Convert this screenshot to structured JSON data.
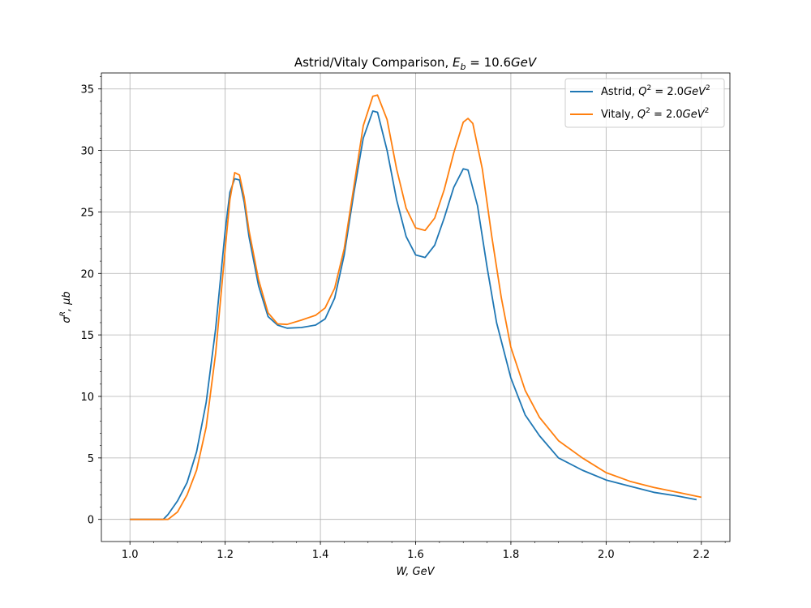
{
  "chart_data": {
    "type": "line",
    "title_main": "Astrid/Vitaly Comparison, ",
    "title_math_var": "E",
    "title_math_sub": "b",
    "title_math_value": " = 10.6",
    "title_math_unit": "GeV",
    "xlabel": "W, GeV",
    "ylabel_sym": "σ",
    "ylabel_sup": "R",
    "ylabel_rest": ", μb",
    "xlim": [
      0.94,
      2.26
    ],
    "ylim": [
      -1.8,
      36.3
    ],
    "xticks": [
      "1.0",
      "1.2",
      "1.4",
      "1.6",
      "1.8",
      "2.0",
      "2.2"
    ],
    "yticks": [
      "0",
      "5",
      "10",
      "15",
      "20",
      "25",
      "30",
      "35"
    ],
    "grid": true,
    "legend_position": "top-right",
    "series": [
      {
        "name_prefix": "Astrid, ",
        "name_math_base": "Q",
        "name_math_sup": "2",
        "name_math_rest": " = 2.0",
        "name_math_unit": "GeV",
        "name_math_unit_sup": "2",
        "color": "#1f77b4",
        "points": [
          [
            1.0,
            0
          ],
          [
            1.07,
            0
          ],
          [
            1.08,
            0.4
          ],
          [
            1.1,
            1.5
          ],
          [
            1.12,
            3.0
          ],
          [
            1.14,
            5.5
          ],
          [
            1.16,
            9.5
          ],
          [
            1.18,
            15.5
          ],
          [
            1.2,
            23.5
          ],
          [
            1.21,
            26.6
          ],
          [
            1.22,
            27.7
          ],
          [
            1.23,
            27.6
          ],
          [
            1.24,
            25.8
          ],
          [
            1.25,
            23.0
          ],
          [
            1.27,
            19.0
          ],
          [
            1.29,
            16.5
          ],
          [
            1.31,
            15.8
          ],
          [
            1.33,
            15.55
          ],
          [
            1.36,
            15.6
          ],
          [
            1.39,
            15.8
          ],
          [
            1.41,
            16.3
          ],
          [
            1.43,
            18.0
          ],
          [
            1.45,
            21.5
          ],
          [
            1.47,
            26.5
          ],
          [
            1.49,
            31.0
          ],
          [
            1.51,
            33.2
          ],
          [
            1.52,
            33.1
          ],
          [
            1.54,
            30.0
          ],
          [
            1.56,
            26.0
          ],
          [
            1.58,
            23.0
          ],
          [
            1.6,
            21.5
          ],
          [
            1.62,
            21.3
          ],
          [
            1.64,
            22.3
          ],
          [
            1.66,
            24.5
          ],
          [
            1.68,
            27.0
          ],
          [
            1.7,
            28.5
          ],
          [
            1.71,
            28.4
          ],
          [
            1.73,
            25.5
          ],
          [
            1.75,
            20.5
          ],
          [
            1.77,
            16.0
          ],
          [
            1.8,
            11.5
          ],
          [
            1.83,
            8.5
          ],
          [
            1.86,
            6.8
          ],
          [
            1.9,
            5.0
          ],
          [
            1.95,
            4.0
          ],
          [
            2.0,
            3.2
          ],
          [
            2.05,
            2.7
          ],
          [
            2.1,
            2.2
          ],
          [
            2.15,
            1.9
          ],
          [
            2.19,
            1.6
          ]
        ]
      },
      {
        "name_prefix": "Vitaly, ",
        "name_math_base": "Q",
        "name_math_sup": "2",
        "name_math_rest": " = 2.0",
        "name_math_unit": "GeV",
        "name_math_unit_sup": "2",
        "color": "#ff7f0e",
        "points": [
          [
            1.0,
            0
          ],
          [
            1.08,
            0
          ],
          [
            1.1,
            0.6
          ],
          [
            1.12,
            2.0
          ],
          [
            1.14,
            4.0
          ],
          [
            1.16,
            7.5
          ],
          [
            1.18,
            13.5
          ],
          [
            1.2,
            22.0
          ],
          [
            1.21,
            26.0
          ],
          [
            1.22,
            28.2
          ],
          [
            1.23,
            28.0
          ],
          [
            1.24,
            26.2
          ],
          [
            1.25,
            23.5
          ],
          [
            1.27,
            19.5
          ],
          [
            1.29,
            16.8
          ],
          [
            1.31,
            15.9
          ],
          [
            1.33,
            15.85
          ],
          [
            1.36,
            16.2
          ],
          [
            1.39,
            16.6
          ],
          [
            1.41,
            17.2
          ],
          [
            1.43,
            18.8
          ],
          [
            1.45,
            22.0
          ],
          [
            1.47,
            27.0
          ],
          [
            1.49,
            32.0
          ],
          [
            1.51,
            34.4
          ],
          [
            1.52,
            34.5
          ],
          [
            1.54,
            32.5
          ],
          [
            1.56,
            28.5
          ],
          [
            1.58,
            25.3
          ],
          [
            1.6,
            23.7
          ],
          [
            1.62,
            23.5
          ],
          [
            1.64,
            24.5
          ],
          [
            1.66,
            26.8
          ],
          [
            1.68,
            29.8
          ],
          [
            1.7,
            32.3
          ],
          [
            1.71,
            32.6
          ],
          [
            1.72,
            32.2
          ],
          [
            1.74,
            28.5
          ],
          [
            1.76,
            23.0
          ],
          [
            1.78,
            18.0
          ],
          [
            1.8,
            14.0
          ],
          [
            1.83,
            10.5
          ],
          [
            1.86,
            8.3
          ],
          [
            1.9,
            6.4
          ],
          [
            1.95,
            5.0
          ],
          [
            2.0,
            3.8
          ],
          [
            2.05,
            3.1
          ],
          [
            2.1,
            2.6
          ],
          [
            2.15,
            2.2
          ],
          [
            2.2,
            1.8
          ]
        ]
      }
    ]
  }
}
